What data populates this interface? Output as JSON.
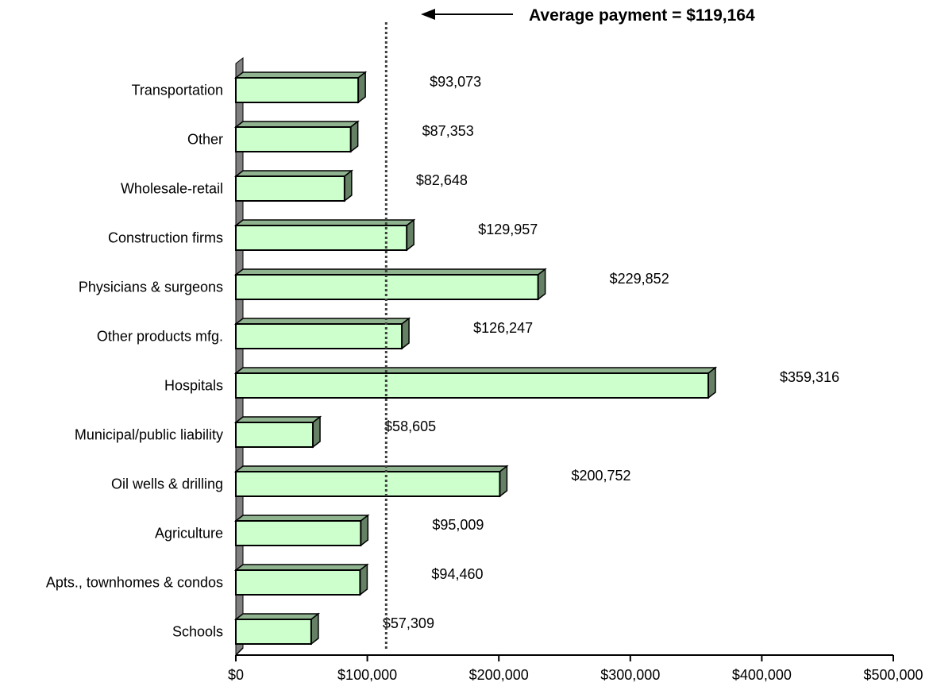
{
  "chart_data": {
    "type": "bar",
    "orientation": "horizontal",
    "title": "",
    "xlabel": "",
    "ylabel": "",
    "categories": [
      "Transportation",
      "Other",
      "Wholesale-retail",
      "Construction firms",
      "Physicians & surgeons",
      "Other products mfg.",
      "Hospitals",
      "Municipal/public liability",
      "Oil wells & drilling",
      "Agriculture",
      "Apts., townhomes & condos",
      "Schools"
    ],
    "values": [
      93073,
      87353,
      82648,
      129957,
      229852,
      126247,
      359316,
      58605,
      200752,
      95009,
      94460,
      57309
    ],
    "value_labels": [
      "$93,073",
      "$87,353",
      "$82,648",
      "$129,957",
      "$229,852",
      "$126,247",
      "$359,316",
      "$58,605",
      "$200,752",
      "$95,009",
      "$94,460",
      "$57,309"
    ],
    "xlim": [
      0,
      500000
    ],
    "xticks": [
      0,
      100000,
      200000,
      300000,
      400000,
      500000
    ],
    "xtick_labels": [
      "$0",
      "$100,000",
      "$200,000",
      "$300,000",
      "$400,000",
      "$500,000"
    ],
    "grid": false,
    "legend": "none",
    "average": {
      "value": 119164,
      "label": "Average payment = $119,164"
    },
    "colors": {
      "bar_fill": "#ccffcc",
      "bar_top": "#8fb38f",
      "bar_side": "#668066",
      "bar_stroke": "#000000",
      "wall": "#808080",
      "average_line": "#404040"
    }
  }
}
